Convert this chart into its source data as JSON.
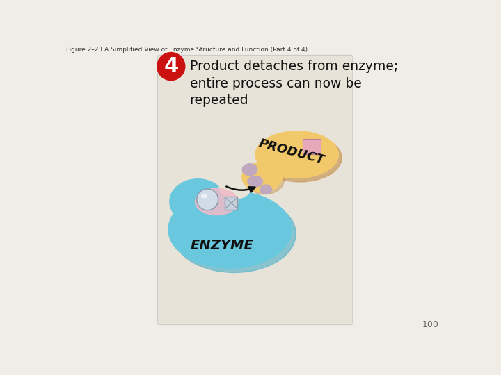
{
  "fig_title": "Figure 2–23 A Simplified View of Enzyme Structure and Function (Part 4 of 4).",
  "step_number": "4",
  "step_circle_color": "#cc1111",
  "step_text": "Product detaches from enzyme;\nentire process can now be\nrepeated",
  "card_bg": "#e8e3d8",
  "enzyme_color": "#6ac8de",
  "enzyme_edge": "#4aafc8",
  "enzyme_label": "ENZYME",
  "product_color": "#f2c96a",
  "product_edge": "#c8985a",
  "product_label": "PRODUCT",
  "active_site_color": "#f0bbc8",
  "sphere_color": "#d0dce8",
  "sphere_edge": "#8899aa",
  "crystal_color": "#c8d0dc",
  "crystal_edge": "#8899aa",
  "pink_square_color": "#e8a8bc",
  "mauve_color": "#c0a8be",
  "arrow_color": "#111111",
  "page_number": "100",
  "bg_color": "#f0ede6"
}
